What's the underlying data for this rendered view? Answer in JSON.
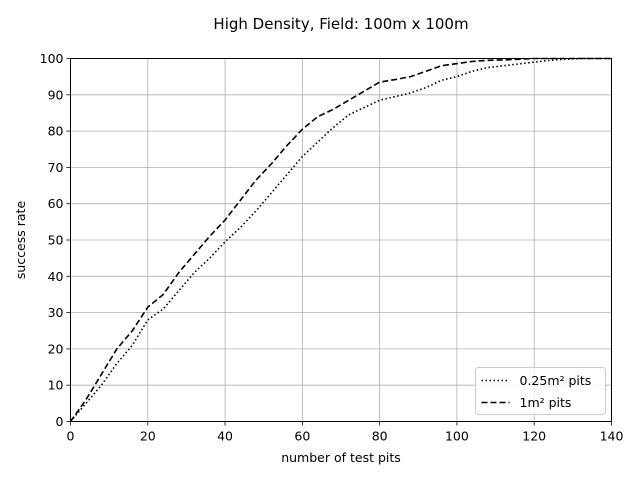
{
  "chart_data": {
    "type": "line",
    "title": "High Density, Field: 100m x 100m",
    "xlabel": "number of test pits",
    "ylabel": "success rate",
    "xlim": [
      0,
      140
    ],
    "ylim": [
      0,
      100
    ],
    "xticks": [
      0,
      20,
      40,
      60,
      80,
      100,
      120,
      140
    ],
    "yticks": [
      0,
      10,
      20,
      30,
      40,
      50,
      60,
      70,
      80,
      90,
      100
    ],
    "grid": true,
    "legend_position": "bottom-right",
    "series": [
      {
        "name": "0.25m² pits",
        "style": "dotted",
        "color": "#000000",
        "x": [
          0,
          4,
          8,
          12,
          16,
          20,
          24,
          28,
          32,
          36,
          40,
          44,
          48,
          52,
          56,
          60,
          64,
          68,
          72,
          76,
          80,
          84,
          88,
          92,
          96,
          100,
          104,
          108,
          112,
          116,
          120,
          124,
          128,
          132,
          136,
          140
        ],
        "y": [
          0,
          5,
          10,
          16,
          21,
          28,
          31,
          36,
          41,
          45,
          49.5,
          53.5,
          58,
          63,
          68,
          73,
          77,
          81,
          84.5,
          86.5,
          88.5,
          89.5,
          90.5,
          92,
          94,
          95,
          96.5,
          97.5,
          98,
          98.5,
          99,
          99.5,
          99.8,
          100,
          100,
          100
        ]
      },
      {
        "name": "1m² pits",
        "style": "dashed",
        "color": "#000000",
        "x": [
          0,
          4,
          8,
          12,
          16,
          20,
          24,
          28,
          32,
          36,
          40,
          44,
          48,
          52,
          56,
          60,
          64,
          68,
          72,
          76,
          80,
          84,
          88,
          92,
          96,
          100,
          104,
          108,
          112,
          116,
          120,
          124,
          128,
          132,
          136,
          140
        ],
        "y": [
          0,
          6,
          13,
          20,
          25,
          31.5,
          35,
          41,
          46,
          51,
          55.5,
          61,
          66.5,
          71,
          76,
          80.5,
          84,
          86,
          88.5,
          91,
          93.5,
          94.2,
          95,
          96.5,
          98,
          98.6,
          99.2,
          99.5,
          99.6,
          99.8,
          100,
          100,
          100,
          100,
          100,
          100
        ]
      }
    ]
  }
}
